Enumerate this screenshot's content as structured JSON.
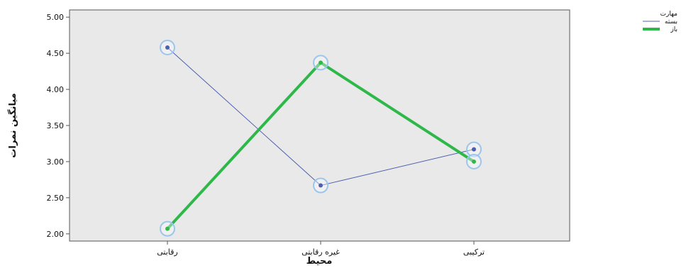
{
  "chart_data": {
    "type": "line",
    "title": "",
    "xlabel": "محیط",
    "ylabel": "میانگین نمرات",
    "categories": [
      "رقابتی",
      "غیره رقابتی",
      "ترکیبی"
    ],
    "ylim": [
      1.9,
      5.1
    ],
    "yticks": [
      "2.00",
      "2.50",
      "3.00",
      "3.50",
      "4.00",
      "4.50",
      "5.00"
    ],
    "grid": false,
    "legend_position": "top-right",
    "legend_title": "مهارت",
    "series": [
      {
        "name": "بسته",
        "values": [
          4.58,
          2.67,
          3.17
        ],
        "color": "#4f5fb0"
      },
      {
        "name": "باز",
        "values": [
          2.07,
          4.37,
          3.0
        ],
        "color": "#2fb84a"
      }
    ],
    "plot_background": "#e9e9e9",
    "marker_ring_color": "#9ac6ee"
  }
}
